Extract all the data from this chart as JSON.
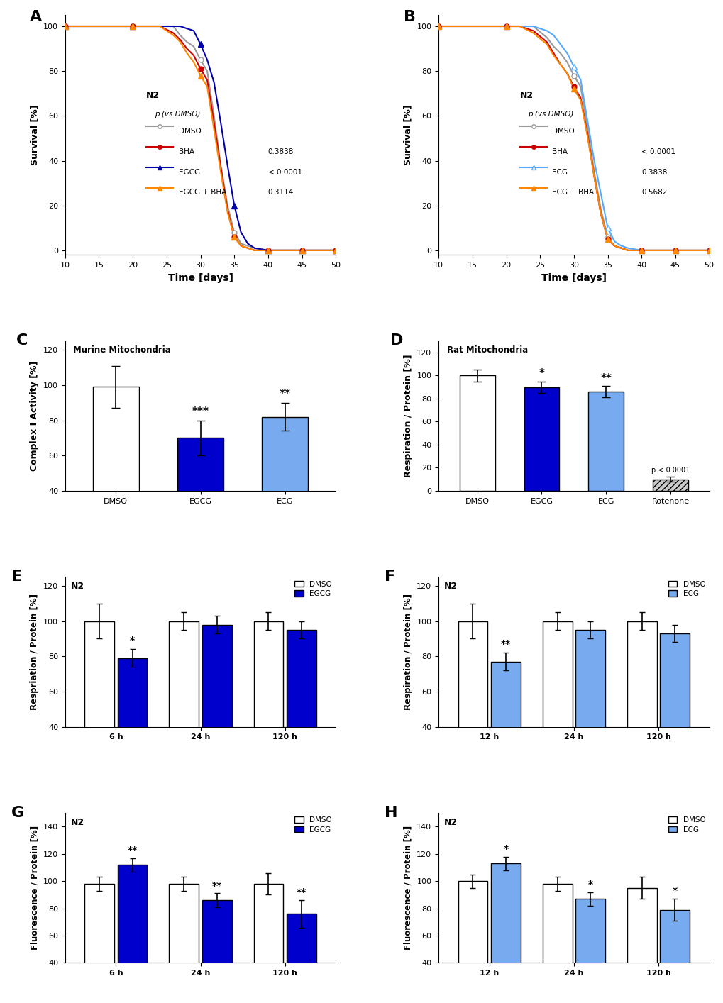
{
  "panel_A": {
    "title": "A",
    "xlabel": "Time [days]",
    "ylabel": "Survival [%]",
    "xlim": [
      10,
      50
    ],
    "ylim": [
      -2,
      105
    ],
    "xticks": [
      10,
      15,
      20,
      25,
      30,
      35,
      40,
      45,
      50
    ],
    "yticks": [
      0,
      20,
      40,
      60,
      80,
      100
    ],
    "label_text": "N2",
    "series": {
      "DMSO": {
        "x": [
          10,
          12,
          14,
          16,
          18,
          20,
          22,
          24,
          26,
          27,
          28,
          29,
          30,
          31,
          32,
          33,
          34,
          35,
          36,
          37,
          38,
          40,
          42,
          45,
          48,
          50
        ],
        "y": [
          100,
          100,
          100,
          100,
          100,
          100,
          100,
          100,
          100,
          96,
          93,
          91,
          85,
          80,
          60,
          38,
          20,
          8,
          3,
          2,
          1,
          0,
          0,
          0,
          0,
          0
        ],
        "color": "#999999",
        "marker": "o",
        "mfc": "white",
        "mec": "#999999",
        "ms": 5
      },
      "BHA": {
        "x": [
          10,
          12,
          14,
          16,
          18,
          20,
          22,
          24,
          26,
          27,
          28,
          29,
          30,
          31,
          32,
          33,
          34,
          35,
          36,
          37,
          38,
          40,
          42,
          45,
          48,
          50
        ],
        "y": [
          100,
          100,
          100,
          100,
          100,
          100,
          100,
          100,
          97,
          94,
          90,
          87,
          81,
          76,
          57,
          37,
          18,
          6,
          2,
          1,
          0,
          0,
          0,
          0,
          0,
          0
        ],
        "color": "#cc0000",
        "marker": "o",
        "mfc": "#cc0000",
        "mec": "#cc0000",
        "ms": 5,
        "p_value": "0.3838"
      },
      "EGCG": {
        "x": [
          10,
          12,
          14,
          16,
          18,
          20,
          22,
          24,
          26,
          27,
          28,
          29,
          30,
          31,
          32,
          33,
          34,
          35,
          36,
          37,
          38,
          40,
          42,
          45,
          48,
          50
        ],
        "y": [
          100,
          100,
          100,
          100,
          100,
          100,
          100,
          100,
          100,
          100,
          99,
          98,
          92,
          85,
          75,
          57,
          38,
          20,
          8,
          3,
          1,
          0,
          0,
          0,
          0,
          0
        ],
        "color": "#0000aa",
        "marker": "^",
        "mfc": "#0000aa",
        "mec": "#0000aa",
        "ms": 6,
        "p_value": "< 0.0001"
      },
      "EGCG+BHA": {
        "x": [
          10,
          12,
          14,
          16,
          18,
          20,
          22,
          24,
          26,
          27,
          28,
          29,
          30,
          31,
          32,
          33,
          34,
          35,
          36,
          37,
          38,
          40,
          42,
          45,
          48,
          50
        ],
        "y": [
          100,
          100,
          100,
          100,
          100,
          100,
          100,
          100,
          96,
          93,
          88,
          84,
          78,
          73,
          54,
          35,
          17,
          6,
          2,
          1,
          0,
          0,
          0,
          0,
          0,
          0
        ],
        "color": "#ff8800",
        "marker": "^",
        "mfc": "#ff8800",
        "mec": "#ff8800",
        "ms": 6,
        "p_value": "0.3114"
      }
    },
    "legend_names": [
      "DMSO",
      "BHA",
      "EGCG",
      "EGCG + BHA"
    ],
    "p_values": [
      "",
      "0.3838",
      "< 0.0001",
      "0.3114"
    ]
  },
  "panel_B": {
    "title": "B",
    "xlabel": "Time [days]",
    "ylabel": "Survival [%]",
    "xlim": [
      10,
      50
    ],
    "ylim": [
      -2,
      105
    ],
    "xticks": [
      10,
      15,
      20,
      25,
      30,
      35,
      40,
      45,
      50
    ],
    "yticks": [
      0,
      20,
      40,
      60,
      80,
      100
    ],
    "label_text": "N2",
    "series": {
      "DMSO": {
        "x": [
          10,
          12,
          14,
          16,
          18,
          20,
          22,
          24,
          26,
          27,
          28,
          29,
          30,
          31,
          32,
          33,
          34,
          35,
          36,
          37,
          38,
          40,
          42,
          45,
          48,
          50
        ],
        "y": [
          100,
          100,
          100,
          100,
          100,
          100,
          100,
          100,
          95,
          91,
          88,
          84,
          78,
          73,
          55,
          35,
          18,
          6,
          2,
          1,
          0,
          0,
          0,
          0,
          0,
          0
        ],
        "color": "#999999",
        "marker": "o",
        "mfc": "white",
        "mec": "#999999",
        "ms": 5
      },
      "BHA": {
        "x": [
          10,
          12,
          14,
          16,
          18,
          20,
          22,
          24,
          26,
          27,
          28,
          29,
          30,
          31,
          32,
          33,
          34,
          35,
          36,
          37,
          38,
          40,
          42,
          45,
          48,
          50
        ],
        "y": [
          100,
          100,
          100,
          100,
          100,
          100,
          100,
          98,
          93,
          88,
          83,
          79,
          73,
          68,
          52,
          33,
          16,
          5,
          2,
          1,
          0,
          0,
          0,
          0,
          0,
          0
        ],
        "color": "#cc0000",
        "marker": "o",
        "mfc": "#cc0000",
        "mec": "#cc0000",
        "ms": 5,
        "p_value": "< 0.0001"
      },
      "ECG": {
        "x": [
          10,
          12,
          14,
          16,
          18,
          20,
          22,
          24,
          26,
          27,
          28,
          29,
          30,
          31,
          32,
          33,
          34,
          35,
          36,
          37,
          38,
          40,
          42,
          45,
          48,
          50
        ],
        "y": [
          100,
          100,
          100,
          100,
          100,
          100,
          100,
          100,
          98,
          96,
          92,
          88,
          82,
          76,
          58,
          40,
          25,
          10,
          4,
          2,
          1,
          0,
          0,
          0,
          0,
          0
        ],
        "color": "#55aaff",
        "marker": "^",
        "mfc": "white",
        "mec": "#55aaff",
        "ms": 6,
        "p_value": "0.3838"
      },
      "ECG+BHA": {
        "x": [
          10,
          12,
          14,
          16,
          18,
          20,
          22,
          24,
          26,
          27,
          28,
          29,
          30,
          31,
          32,
          33,
          34,
          35,
          36,
          37,
          38,
          40,
          42,
          45,
          48,
          50
        ],
        "y": [
          100,
          100,
          100,
          100,
          100,
          100,
          100,
          97,
          92,
          87,
          83,
          79,
          72,
          67,
          51,
          33,
          16,
          5,
          2,
          1,
          0,
          0,
          0,
          0,
          0,
          0
        ],
        "color": "#ff8800",
        "marker": "^",
        "mfc": "#ff8800",
        "mec": "#ff8800",
        "ms": 6,
        "p_value": "0.5682"
      }
    },
    "legend_names": [
      "DMSO",
      "BHA",
      "ECG",
      "ECG + BHA"
    ],
    "p_values": [
      "",
      "< 0.0001",
      "0.3838",
      "0.5682"
    ]
  },
  "panel_C": {
    "title": "C",
    "subtitle": "Murine Mitochondria",
    "ylabel": "Complex I Activity [%]",
    "ylim": [
      40,
      125
    ],
    "yticks": [
      40,
      60,
      80,
      100,
      120
    ],
    "categories": [
      "DMSO",
      "EGCG",
      "ECG"
    ],
    "values": [
      99,
      70,
      82
    ],
    "errors": [
      12,
      10,
      8
    ],
    "colors": [
      "white",
      "#0000cc",
      "#77aaee"
    ],
    "significance": [
      "",
      "***",
      "**"
    ],
    "bar_edge_color": "black",
    "bar_width": 0.55
  },
  "panel_D": {
    "title": "D",
    "subtitle": "Rat Mitochondria",
    "ylabel": "Respiration / Protein [%]",
    "ylim": [
      0,
      130
    ],
    "yticks": [
      0,
      20,
      40,
      60,
      80,
      100,
      120
    ],
    "categories": [
      "DMSO",
      "EGCG",
      "ECG",
      "Rotenone"
    ],
    "values": [
      100,
      90,
      86,
      10
    ],
    "errors": [
      5,
      5,
      5,
      2
    ],
    "colors": [
      "white",
      "#0000cc",
      "#77aaee",
      "#cccccc"
    ],
    "hatch": [
      "",
      "",
      "",
      "////"
    ],
    "significance": [
      "",
      "*",
      "**",
      ""
    ],
    "p_annotation": "p < 0.0001",
    "bar_edge_color": "black",
    "bar_width": 0.55
  },
  "panel_E": {
    "title": "E",
    "ylabel": "Respriation / Protein [%]",
    "ylim": [
      40,
      125
    ],
    "yticks": [
      40,
      60,
      80,
      100,
      120
    ],
    "label_text": "N2",
    "groups": [
      "6 h",
      "24 h",
      "120 h"
    ],
    "dmso_values": [
      100,
      100,
      100
    ],
    "dmso_errors": [
      10,
      5,
      5
    ],
    "trt_values": [
      79,
      98,
      95
    ],
    "trt_errors": [
      5,
      5,
      5
    ],
    "trt_color": "#0000cc",
    "trt_name": "EGCG",
    "significance": [
      "*",
      "",
      ""
    ],
    "sig_on_trt": [
      true,
      false,
      false
    ],
    "bar_width": 0.35
  },
  "panel_F": {
    "title": "F",
    "ylabel": "Respiration / Protein [%]",
    "ylim": [
      40,
      125
    ],
    "yticks": [
      40,
      60,
      80,
      100,
      120
    ],
    "label_text": "N2",
    "groups": [
      "12 h",
      "24 h",
      "120 h"
    ],
    "dmso_values": [
      100,
      100,
      100
    ],
    "dmso_errors": [
      10,
      5,
      5
    ],
    "trt_values": [
      77,
      95,
      93
    ],
    "trt_errors": [
      5,
      5,
      5
    ],
    "trt_color": "#77aaee",
    "trt_name": "ECG",
    "significance": [
      "**",
      "",
      ""
    ],
    "sig_on_trt": [
      true,
      false,
      false
    ],
    "bar_width": 0.35
  },
  "panel_G": {
    "title": "G",
    "ylabel": "Fluorescence / Protein [%]",
    "ylim": [
      40,
      150
    ],
    "yticks": [
      40,
      60,
      80,
      100,
      120,
      140
    ],
    "label_text": "N2",
    "groups": [
      "6 h",
      "24 h",
      "120 h"
    ],
    "dmso_values": [
      98,
      98,
      98
    ],
    "dmso_errors": [
      5,
      5,
      8
    ],
    "trt_values": [
      112,
      86,
      76
    ],
    "trt_errors": [
      5,
      5,
      10
    ],
    "trt_color": "#0000cc",
    "trt_name": "EGCG",
    "significance": [
      "**",
      "**",
      "**"
    ],
    "sig_on_trt": [
      true,
      true,
      true
    ],
    "bar_width": 0.35
  },
  "panel_H": {
    "title": "H",
    "ylabel": "Fluorescence / Protein [%]",
    "ylim": [
      40,
      150
    ],
    "yticks": [
      40,
      60,
      80,
      100,
      120,
      140
    ],
    "label_text": "N2",
    "groups": [
      "12 h",
      "24 h",
      "120 h"
    ],
    "dmso_values": [
      100,
      98,
      95
    ],
    "dmso_errors": [
      5,
      5,
      8
    ],
    "trt_values": [
      113,
      87,
      79
    ],
    "trt_errors": [
      5,
      5,
      8
    ],
    "trt_color": "#77aaee",
    "trt_name": "ECG",
    "significance": [
      "*",
      "*",
      "*"
    ],
    "sig_on_trt": [
      true,
      true,
      true
    ],
    "bar_width": 0.35
  }
}
